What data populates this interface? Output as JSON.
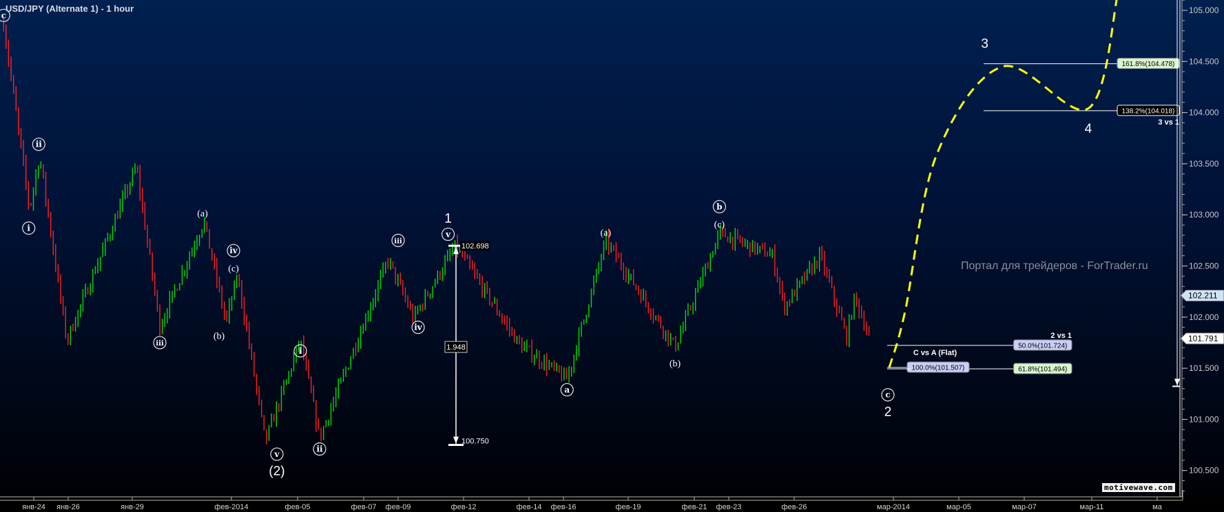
{
  "header": {
    "title": "USD/JPY (Alternate 1) - 1 hour"
  },
  "watermark": "Портал для трейдеров - ForTrader.ru",
  "logo": "motivewave.com",
  "colors": {
    "up_bar": "#00e000",
    "down_bar": "#ff2020",
    "projection": "#ffff00",
    "background_top": "#00204f",
    "background_bottom": "#000004",
    "fib_green": "#d8f5d0",
    "fib_lavender": "#c8d0f5",
    "price_marker_blue": "#cfe3f5"
  },
  "chart_data": {
    "type": "line",
    "title": "USD/JPY (Alternate 1) - 1 hour",
    "style": "hourly price bars (green up / red down)",
    "ylim": [
      100.3,
      105.1
    ],
    "y_ticks": [
      "100.500",
      "101.000",
      "101.500",
      "102.000",
      "102.500",
      "103.000",
      "103.500",
      "104.000",
      "104.500",
      "105.000"
    ],
    "x_ticks": [
      {
        "label": "янв-24",
        "date": "2014-01-24"
      },
      {
        "label": "янв-26",
        "date": "2014-01-26"
      },
      {
        "label": "янв-29",
        "date": "2014-01-29"
      },
      {
        "label": "фев-2014",
        "date": "2014-02-01"
      },
      {
        "label": "фев-05",
        "date": "2014-02-05"
      },
      {
        "label": "фев-07",
        "date": "2014-02-07"
      },
      {
        "label": "фев-09",
        "date": "2014-02-09"
      },
      {
        "label": "фев-12",
        "date": "2014-02-12"
      },
      {
        "label": "фев-14",
        "date": "2014-02-14"
      },
      {
        "label": "фев-16",
        "date": "2014-02-16"
      },
      {
        "label": "фев-19",
        "date": "2014-02-19"
      },
      {
        "label": "фев-21",
        "date": "2014-02-21"
      },
      {
        "label": "фев-23",
        "date": "2014-02-23"
      },
      {
        "label": "фев-26",
        "date": "2014-02-26"
      },
      {
        "label": "мар-2014",
        "date": "2014-03-01"
      },
      {
        "label": "мар-05",
        "date": "2014-03-05"
      },
      {
        "label": "мар-07",
        "date": "2014-03-07"
      },
      {
        "label": "мар-11",
        "date": "2014-03-11"
      },
      {
        "label": "ма",
        "date": "2014-03-13"
      }
    ],
    "price_swings": [
      {
        "t": "2014-01-22T06:00",
        "p": 104.87
      },
      {
        "t": "2014-01-23T18:00",
        "p": 103.05
      },
      {
        "t": "2014-01-24T08:00",
        "p": 103.58
      },
      {
        "t": "2014-01-25T22:00",
        "p": 101.77
      },
      {
        "t": "2014-01-29T03:00",
        "p": 103.47
      },
      {
        "t": "2014-01-29T20:00",
        "p": 101.91
      },
      {
        "t": "2014-01-31T04:00",
        "p": 102.94
      },
      {
        "t": "2014-01-31T20:00",
        "p": 101.95
      },
      {
        "t": "2014-02-01T09:00",
        "p": 102.41
      },
      {
        "t": "2014-02-03T01:00",
        "p": 100.78
      },
      {
        "t": "2014-02-05T02:00",
        "p": 101.77
      },
      {
        "t": "2014-02-05T16:00",
        "p": 100.82
      },
      {
        "t": "2014-02-08T10:00",
        "p": 102.56
      },
      {
        "t": "2014-02-09T17:00",
        "p": 101.99
      },
      {
        "t": "2014-02-11T15:00",
        "p": 102.698
      },
      {
        "t": "2014-02-13T17:00",
        "p": 101.73
      },
      {
        "t": "2014-02-16T04:00",
        "p": 101.39
      },
      {
        "t": "2014-02-17T23:00",
        "p": 102.75
      },
      {
        "t": "2014-02-20T10:00",
        "p": 101.71
      },
      {
        "t": "2014-02-22T11:00",
        "p": 102.82
      },
      {
        "t": "2014-02-25T00:00",
        "p": 102.6
      },
      {
        "t": "2014-02-25T13:00",
        "p": 102.1
      },
      {
        "t": "2014-02-26T19:00",
        "p": 102.6
      },
      {
        "t": "2014-02-27T14:00",
        "p": 101.8
      },
      {
        "t": "2014-02-27T20:00",
        "p": 102.2
      },
      {
        "t": "2014-02-28T07:00",
        "p": 101.791
      }
    ],
    "projection": [
      {
        "t": "2014-02-28T21:00",
        "p": 101.507
      },
      {
        "t": "2014-03-01T17:00",
        "p": 102.05
      },
      {
        "t": "2014-03-03T15:00",
        "p": 103.58
      },
      {
        "t": "2014-03-06T08:00",
        "p": 104.45
      },
      {
        "t": "2014-03-10T19:00",
        "p": 104.04
      },
      {
        "t": "2014-03-11T19:00",
        "p": 105.15
      }
    ],
    "wave_labels": [
      {
        "text": "c",
        "style": "circle",
        "t": "2014-01-22T06:00",
        "p": 104.95
      },
      {
        "text": "i",
        "style": "circle",
        "t": "2014-01-23T17:00",
        "p": 102.87
      },
      {
        "text": "ii",
        "style": "circle",
        "t": "2014-01-24T07:00",
        "p": 103.69
      },
      {
        "text": "iii",
        "style": "circle",
        "t": "2014-01-29T20:00",
        "p": 101.75
      },
      {
        "text": "(a)",
        "style": "paren",
        "t": "2014-01-31T03:00",
        "p": 103.04
      },
      {
        "text": "(b)",
        "style": "paren",
        "t": "2014-01-31T15:00",
        "p": 101.84
      },
      {
        "text": "iv",
        "style": "circle",
        "t": "2014-02-01T03:00",
        "p": 102.65
      },
      {
        "text": "(c)",
        "style": "paren",
        "t": "2014-02-01T03:00",
        "p": 102.5
      },
      {
        "text": "v",
        "style": "circle",
        "t": "2014-02-03T18:00",
        "p": 100.66
      },
      {
        "text": "(2)",
        "style": "plain",
        "t": "2014-02-03T18:00",
        "p": 100.5
      },
      {
        "text": "i",
        "style": "circle",
        "t": "2014-02-05T02:00",
        "p": 101.67
      },
      {
        "text": "ii",
        "style": "circle",
        "t": "2014-02-05T16:00",
        "p": 100.71
      },
      {
        "text": "iii",
        "style": "circle",
        "t": "2014-02-09T00:00",
        "p": 102.75
      },
      {
        "text": "iv",
        "style": "circle",
        "t": "2014-02-09T22:00",
        "p": 101.9
      },
      {
        "text": "1",
        "style": "plain",
        "t": "2014-02-11T07:00",
        "p": 102.97
      },
      {
        "text": "v",
        "style": "circle",
        "t": "2014-02-11T07:00",
        "p": 102.81
      },
      {
        "text": "a",
        "style": "circle",
        "t": "2014-02-16T04:00",
        "p": 101.29
      },
      {
        "text": "(a)",
        "style": "paren",
        "t": "2014-02-17T23:00",
        "p": 102.85
      },
      {
        "text": "(b)",
        "style": "paren",
        "t": "2014-02-20T10:00",
        "p": 101.57
      },
      {
        "text": "b",
        "style": "circle",
        "t": "2014-02-22T11:00",
        "p": 103.08
      },
      {
        "text": "(c)",
        "style": "paren",
        "t": "2014-02-22T11:00",
        "p": 102.93
      },
      {
        "text": "c",
        "style": "circle",
        "t": "2014-02-28T20:00",
        "p": 101.24
      },
      {
        "text": "2",
        "style": "plain",
        "t": "2014-02-28T20:00",
        "p": 101.08
      },
      {
        "text": "3",
        "style": "plain",
        "t": "2014-03-05T19:00",
        "p": 104.68
      },
      {
        "text": "4",
        "style": "plain",
        "t": "2014-03-10T19:00",
        "p": 103.85
      }
    ],
    "fib_groups": [
      {
        "title": "3 vs 1",
        "levels": [
          {
            "label": "161.8%(104.478)",
            "price": 104.478,
            "color": "#d8f5d0"
          },
          {
            "label": "138.2%(104.018)",
            "price": 104.018,
            "color": "#000000"
          }
        ]
      },
      {
        "title": "2 vs 1",
        "levels": [
          {
            "label": "50.0%(101.724)",
            "price": 101.724,
            "color": "#c8d0f5"
          },
          {
            "label": "61.8%(101.494)",
            "price": 101.494,
            "color": "#d8f5d0"
          }
        ]
      },
      {
        "title": "C vs A (Flat)",
        "levels": [
          {
            "label": "100.0%(101.507)",
            "price": 101.507,
            "color": "#c8d0f5"
          }
        ]
      }
    ],
    "measure": {
      "top": "102.698",
      "bottom": "100.750",
      "diff": "1.948",
      "top_price": 102.698,
      "bottom_price": 100.75
    },
    "price_markers": [
      {
        "label": "102.211",
        "price": 102.211,
        "color": "#cfe3f5"
      },
      {
        "label": "101.791",
        "price": 101.791,
        "color": "#ffffff"
      }
    ]
  }
}
